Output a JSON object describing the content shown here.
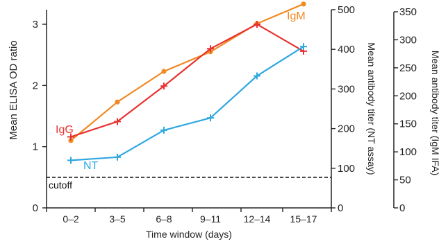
{
  "chart_data": {
    "type": "line",
    "categories": [
      "0–2",
      "3–5",
      "6–8",
      "9–11",
      "12–14",
      "15–17"
    ],
    "xlabel": "Time window (days)",
    "ylabel": "Mean ELISA OD ratio",
    "ylim": [
      0,
      3.5
    ],
    "yticks": [
      0,
      1,
      2,
      3
    ],
    "y2label": "Mean antibody titer (NT assay)",
    "y2lim": [
      0,
      500
    ],
    "y2ticks": [
      0,
      100,
      200,
      300,
      400,
      500
    ],
    "y3label": "Mean antibody titer (IgM IFA)",
    "y3lim": [
      0,
      350
    ],
    "y3ticks": [
      0,
      50,
      100,
      150,
      200,
      250,
      300,
      350
    ],
    "grid": false,
    "cutoff": {
      "label": "cutoff",
      "value": 0.5
    },
    "series": [
      {
        "name": "IgM",
        "color": "#f08a24",
        "marker": "circle",
        "axis": "y",
        "values": [
          1.1,
          1.73,
          2.23,
          2.55,
          3.01,
          3.33
        ]
      },
      {
        "name": "IgG",
        "color": "#e8312e",
        "marker": "plus",
        "axis": "y",
        "values": [
          1.16,
          1.41,
          1.99,
          2.6,
          3.0,
          2.56
        ]
      },
      {
        "name": "NT",
        "color": "#2ea7e0",
        "marker": "plus",
        "axis": "y2",
        "values": [
          120,
          128,
          196,
          227,
          333,
          407
        ]
      }
    ]
  }
}
